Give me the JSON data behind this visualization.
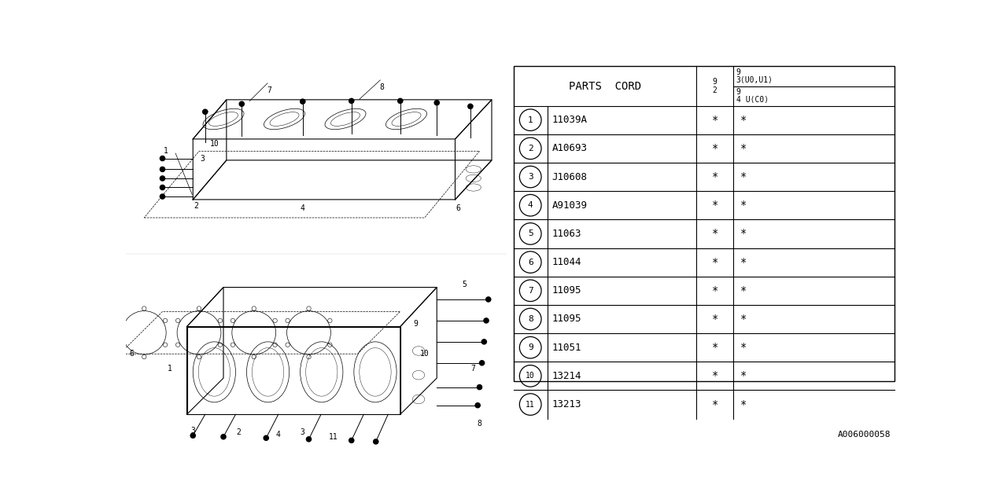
{
  "parts_header": "PARTS  CORD",
  "parts": [
    {
      "num": "1",
      "code": "11039A"
    },
    {
      "num": "2",
      "code": "A10693"
    },
    {
      "num": "3",
      "code": "J10608"
    },
    {
      "num": "4",
      "code": "A91039"
    },
    {
      "num": "5",
      "code": "11063"
    },
    {
      "num": "6",
      "code": "11044"
    },
    {
      "num": "7",
      "code": "11095"
    },
    {
      "num": "8",
      "code": "11095"
    },
    {
      "num": "9",
      "code": "11051"
    },
    {
      "num": "10",
      "code": "13214"
    },
    {
      "num": "11",
      "code": "13213"
    }
  ],
  "watermark": "A006000058",
  "bg_color": "#ffffff",
  "line_color": "#000000",
  "font_size": 9
}
